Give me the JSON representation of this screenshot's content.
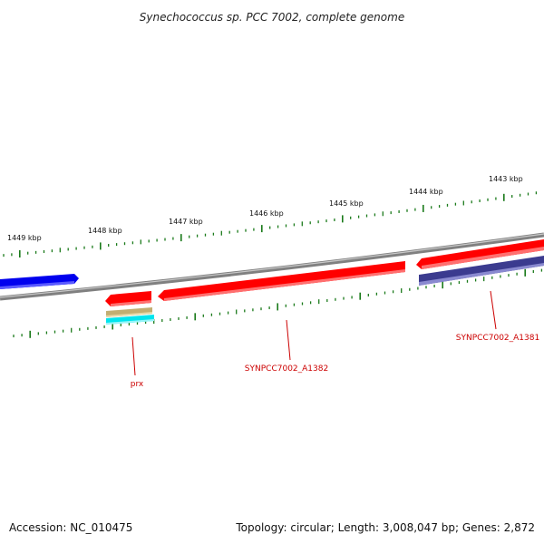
{
  "title": "Synechococcus sp. PCC 7002, complete genome",
  "footer": {
    "accession": "Accession: NC_010475",
    "summary": "Topology: circular; Length: 3,008,047 bp; Genes: 2,872"
  },
  "colors": {
    "backbone": "#808080",
    "tick": "#1a7a1a",
    "label": "#cc0000",
    "gene_red": "#ff0000",
    "gene_blue": "#0000ee",
    "gene_navy": "#3b3b8f",
    "gene_tan": "#c2ae72",
    "gene_cyan": "#00e5ee"
  },
  "ticks": [
    {
      "label": "1449 kbp"
    },
    {
      "label": "1448 kbp"
    },
    {
      "label": "1447 kbp"
    },
    {
      "label": "1446 kbp"
    },
    {
      "label": "1445 kbp"
    },
    {
      "label": "1444 kbp"
    },
    {
      "label": "1443 kbp"
    }
  ],
  "genes": [
    {
      "id": "blue-gene",
      "color": "gene_blue",
      "strand": "forward"
    },
    {
      "id": "red-gene-right",
      "color": "gene_red",
      "strand": "forward"
    },
    {
      "id": "navy-gene",
      "color": "gene_navy",
      "strand": "forward"
    },
    {
      "id": "prx-gene",
      "color": "gene_red",
      "strand": "reverse"
    },
    {
      "id": "synpcc7002-a1382-gene",
      "color": "gene_red",
      "strand": "reverse"
    },
    {
      "id": "tan-feature",
      "color": "gene_tan",
      "strand": "none"
    },
    {
      "id": "cyan-feature",
      "color": "gene_cyan",
      "strand": "none"
    }
  ],
  "labels": [
    {
      "text": "prx"
    },
    {
      "text": "SYNPCC7002_A1382"
    },
    {
      "text": "SYNPCC7002_A1381"
    }
  ]
}
